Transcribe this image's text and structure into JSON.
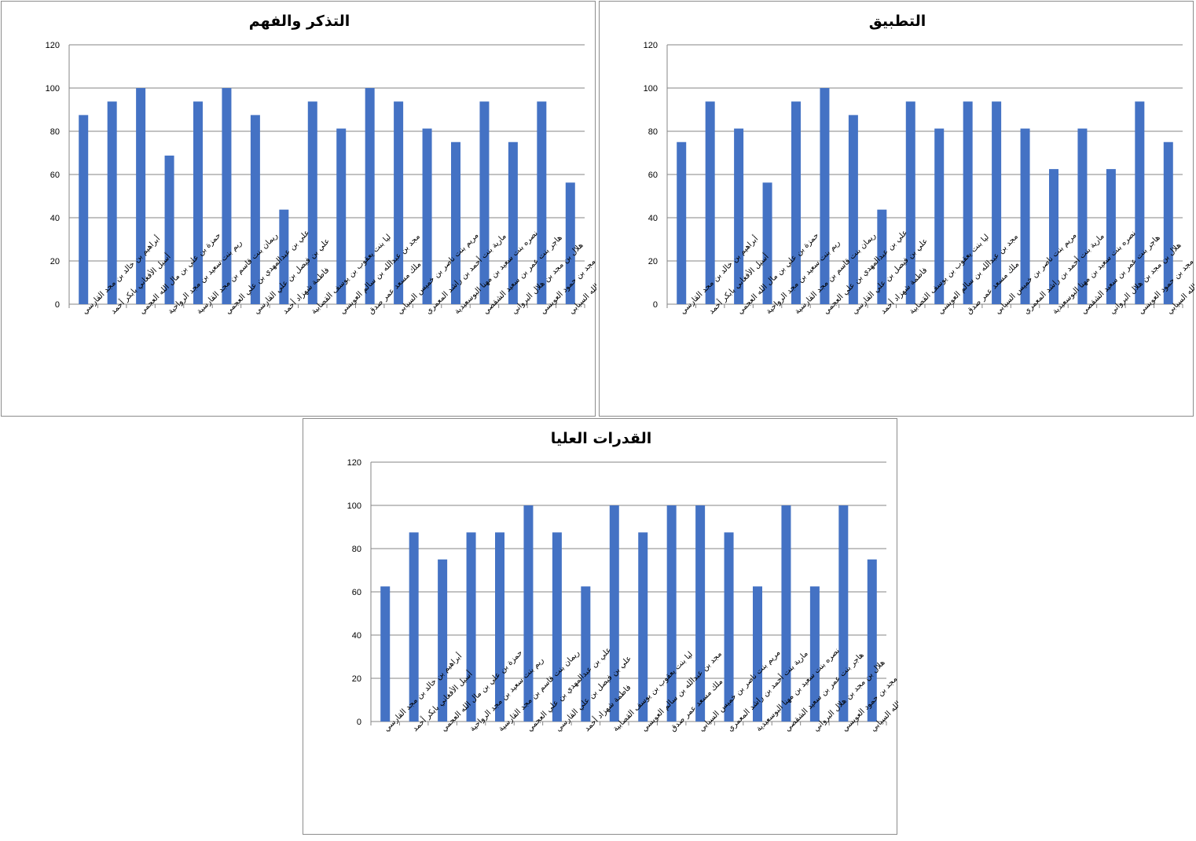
{
  "chart_data": [
    {
      "type": "bar",
      "title": "التذكر والفهم",
      "categories": [
        "أبراهيم بن خالد بن مجد القارسي",
        "أسيل الأفغاني بابكر أحمد",
        "حمزة بن علي بن مال الله العجمي",
        "ريم بنت سعيد بن مجد الرواحية",
        "ريمان بنت قاسم بن مجد القارسية",
        "علي بن عبدالمهدي بن علي العجمي",
        "علي بن فيصل بن علي القارسي",
        "فاطمة شهزاد أحمد",
        "ليا بنت يعقوب بن يوسف القصابية",
        "مجد بن عبدالله بن سالم العويسي",
        "ملك مسعد عمر صدق",
        "مريم بنت ناصر بن خميس السيابي",
        "مارية بنت أحمد بن راشد المعمري",
        "نصره بنت سعيد بن مهنا البوسعيدية",
        "هاجر بنت عمر بن سعيد الشقصي",
        "هلال بن مجد بن هلال البرواني",
        "حمود بن مجد بن حمود العويسي",
        "مجد بن أحمد بن عبدالله السيابي"
      ],
      "values": [
        87.5,
        93.75,
        100,
        68.75,
        93.75,
        100,
        87.5,
        43.75,
        93.75,
        81.25,
        100,
        93.75,
        81.25,
        75,
        93.75,
        75,
        93.75,
        56.25
      ],
      "yticks": [
        "0",
        "20",
        "40",
        "60",
        "80",
        "100",
        "120"
      ],
      "ylim": [
        0,
        120
      ],
      "grid": true,
      "bar_color": "#4472C4"
    },
    {
      "type": "bar",
      "title": "التطبيق",
      "categories": [
        "أبراهيم بن خالد بن مجد القارسي",
        "أسيل الأفغاني بابكر أحمد",
        "حمزة بن علي بن مال الله العجمي",
        "ريم بنت سعيد بن مجد الرواحية",
        "ريمان بنت قاسم بن مجد القارسية",
        "علي بن عبدالمهدي بن علي العجمي",
        "علي بن فيصل بن علي القارسي",
        "فاطمة شهزاد أحمد",
        "ليا بنت يعقوب بن يوسف القصابية",
        "مجد بن عبدالله بن سالم العويسي",
        "ملك مسعد عمر صدق",
        "مريم بنت ناصر بن خميس السيابي",
        "مارية بنت أحمد بن راشد المعمري",
        "نصره بنت سعيد بن مهنا البوسعيدية",
        "هاجر بنت عمر بن سعيد الشقصي",
        "هلال بن مجد بن هلال البرواني",
        "حمود بن مجد بن حمود العويسي",
        "مجد بن أحمد بن عبدالله السيابي"
      ],
      "values": [
        75,
        93.75,
        81.25,
        56.25,
        93.75,
        100,
        87.5,
        43.75,
        93.75,
        81.25,
        93.75,
        93.75,
        81.25,
        62.5,
        81.25,
        62.5,
        93.75,
        75
      ],
      "yticks": [
        "0",
        "20",
        "40",
        "60",
        "80",
        "100",
        "120"
      ],
      "ylim": [
        0,
        120
      ],
      "grid": true,
      "bar_color": "#4472C4"
    },
    {
      "type": "bar",
      "title": "القدرات العليا",
      "categories": [
        "أبراهيم بن خالد بن مجد القارسي",
        "أسيل الأفغاني بابكر أحمد",
        "حمزة بن علي بن مال الله العجمي",
        "ريم بنت سعيد بن مجد الرواحية",
        "ريمان بنت قاسم بن مجد القارسية",
        "علي بن عبدالمهدي بن علي العجمي",
        "علي بن فيصل بن علي القارسي",
        "فاطمة شهزاد أحمد",
        "ليا بنت يعقوب بن يوسف القصابية",
        "مجد بن عبدالله بن سالم العويسي",
        "ملك مسعد عمر صدق",
        "مريم بنت ناصر بن خميس السيابي",
        "مارية بنت أحمد بن راشد المعمري",
        "نصره بنت سعيد بن مهنا البوسعيدية",
        "هاجر بنت عمر بن سعيد الشقصي",
        "هلال بن مجد بن هلال البرواني",
        "حمود بن مجد بن حمود العويسي",
        "مجد بن أحمد بن عبدالله السيابي"
      ],
      "values": [
        62.5,
        87.5,
        75,
        87.5,
        87.5,
        100,
        87.5,
        62.5,
        100,
        87.5,
        100,
        100,
        87.5,
        62.5,
        100,
        62.5,
        100,
        75
      ],
      "yticks": [
        "0",
        "20",
        "40",
        "60",
        "80",
        "100",
        "120"
      ],
      "ylim": [
        0,
        120
      ],
      "grid": true,
      "bar_color": "#4472C4"
    }
  ]
}
